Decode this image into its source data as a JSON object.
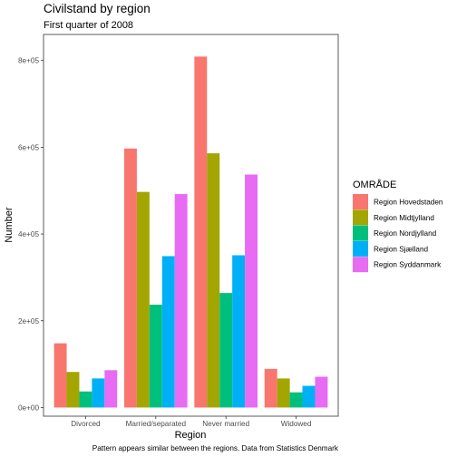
{
  "chart_data": {
    "type": "bar",
    "title": "Civilstand by region",
    "subtitle": "First quarter of 2008",
    "xlabel": "Region",
    "ylabel": "Number",
    "caption": "Pattern appears similar between the regions. Data from Statistics Denmark",
    "categories": [
      "Divorced",
      "Married/separated",
      "Never married",
      "Widowed"
    ],
    "ylim": [
      -20000,
      860000
    ],
    "yticks": [
      0,
      200000,
      400000,
      600000,
      800000
    ],
    "ytick_labels": [
      "0e+00",
      "2e+05",
      "4e+05",
      "6e+05",
      "8e+05"
    ],
    "grid": false,
    "legend": {
      "title": "OMRÅDE",
      "position": "right"
    },
    "series": [
      {
        "name": "Region Hovedstaden",
        "color": "#F8766D",
        "values": [
          148000,
          597000,
          809000,
          89000
        ]
      },
      {
        "name": "Region Midtjylland",
        "color": "#A3A500",
        "values": [
          82000,
          497000,
          586000,
          67000
        ]
      },
      {
        "name": "Region Nordjylland",
        "color": "#00BF7D",
        "values": [
          37000,
          237000,
          264000,
          35000
        ]
      },
      {
        "name": "Region Sjælland",
        "color": "#00B0F6",
        "values": [
          67000,
          349000,
          351000,
          50000
        ]
      },
      {
        "name": "Region Syddanmark",
        "color": "#E76BF3",
        "values": [
          86000,
          492000,
          537000,
          71000
        ]
      }
    ]
  }
}
